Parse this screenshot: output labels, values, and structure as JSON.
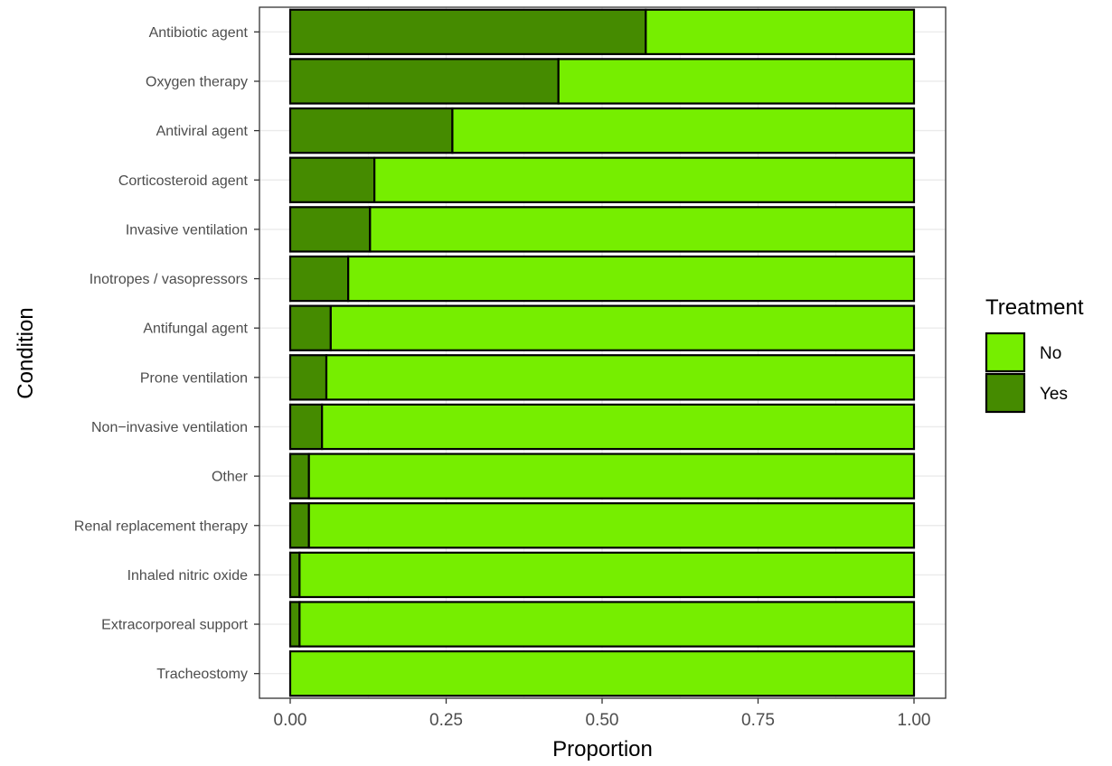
{
  "chart_data": {
    "type": "bar",
    "orientation": "horizontal",
    "stacked": true,
    "xlabel": "Proportion",
    "ylabel": "Condition",
    "xlim": [
      0,
      1
    ],
    "x_ticks": [
      "0.00",
      "0.25",
      "0.50",
      "0.75",
      "1.00"
    ],
    "grid": true,
    "legend_position": "right",
    "legend_title": "Treatment",
    "categories": [
      "Antibiotic agent",
      "Oxygen therapy",
      "Antiviral agent",
      "Corticosteroid agent",
      "Invasive ventilation",
      "Inotropes / vasopressors",
      "Antifungal agent",
      "Prone ventilation",
      "Non−invasive ventilation",
      "Other",
      "Renal replacement therapy",
      "Inhaled nitric oxide",
      "Extracorporeal support",
      "Tracheostomy"
    ],
    "series": [
      {
        "name": "Yes",
        "color": "#458B00",
        "values": [
          0.57,
          0.43,
          0.26,
          0.135,
          0.128,
          0.093,
          0.065,
          0.058,
          0.051,
          0.03,
          0.03,
          0.015,
          0.015,
          0.0
        ]
      },
      {
        "name": "No",
        "color": "#76EE00",
        "values": [
          0.43,
          0.57,
          0.74,
          0.865,
          0.872,
          0.907,
          0.935,
          0.942,
          0.949,
          0.97,
          0.97,
          0.985,
          0.985,
          1.0
        ]
      }
    ],
    "legend_order": [
      "No",
      "Yes"
    ]
  }
}
